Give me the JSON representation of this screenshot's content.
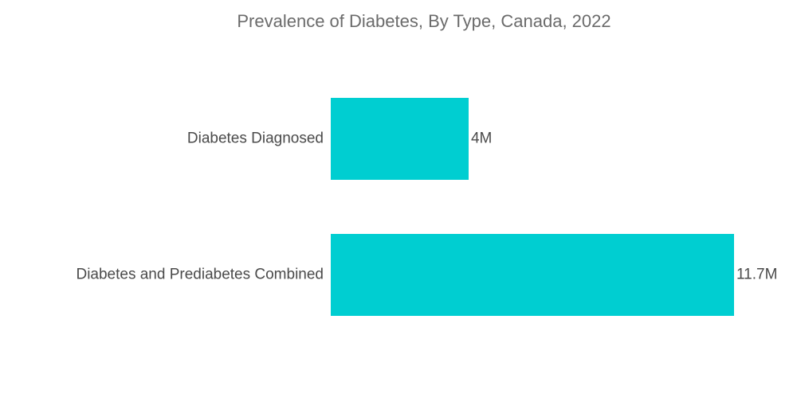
{
  "chart_data": {
    "type": "bar",
    "orientation": "horizontal",
    "title": "Prevalence of Diabetes, By Type, Canada, 2022",
    "categories": [
      "Diabetes Diagnosed",
      "Diabetes and Prediabetes Combined"
    ],
    "values": [
      4,
      11.7
    ],
    "value_labels": [
      "4M",
      "11.7M"
    ],
    "unit": "M",
    "bar_color": "#00CED1",
    "xlim": [
      0,
      11.7
    ],
    "grid": false,
    "legend": "none"
  }
}
